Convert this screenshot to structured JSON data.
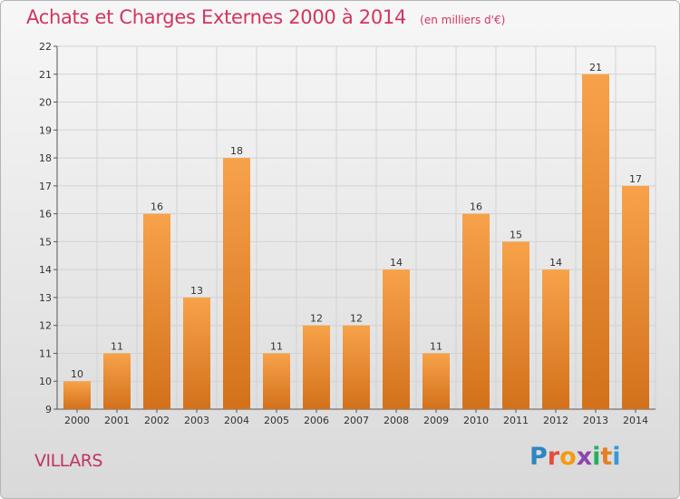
{
  "header": {
    "title": "Achats et Charges Externes 2000 à 2014",
    "unit": "(en milliers d'€)"
  },
  "footer": {
    "commune": "VILLARS",
    "brand_letters": [
      "P",
      "r",
      "o",
      "x",
      "i",
      "t",
      "i"
    ],
    "brand_colors": [
      "#2e86c1",
      "#e74c3c",
      "#f39c12",
      "#8e44ad",
      "#27ae60",
      "#e67e22",
      "#3498db"
    ]
  },
  "colors": {
    "bar_top": "#f7a24a",
    "bar_bottom": "#d3711b",
    "title": "#d3345f",
    "grid": "#d2d2d2"
  },
  "chart_data": {
    "type": "bar",
    "title": "Achats et Charges Externes 2000 à 2014",
    "subtitle": "(en milliers d'€)",
    "categories": [
      "2000",
      "2001",
      "2002",
      "2003",
      "2004",
      "2005",
      "2006",
      "2007",
      "2008",
      "2009",
      "2010",
      "2011",
      "2012",
      "2013",
      "2014"
    ],
    "values": [
      10,
      11,
      16,
      13,
      18,
      11,
      12,
      12,
      14,
      11,
      16,
      15,
      14,
      21,
      17
    ],
    "ylim": [
      9,
      22
    ],
    "yticks": [
      9,
      10,
      11,
      12,
      13,
      14,
      15,
      16,
      17,
      18,
      19,
      20,
      21,
      22
    ],
    "grid": true,
    "legend": "none"
  }
}
